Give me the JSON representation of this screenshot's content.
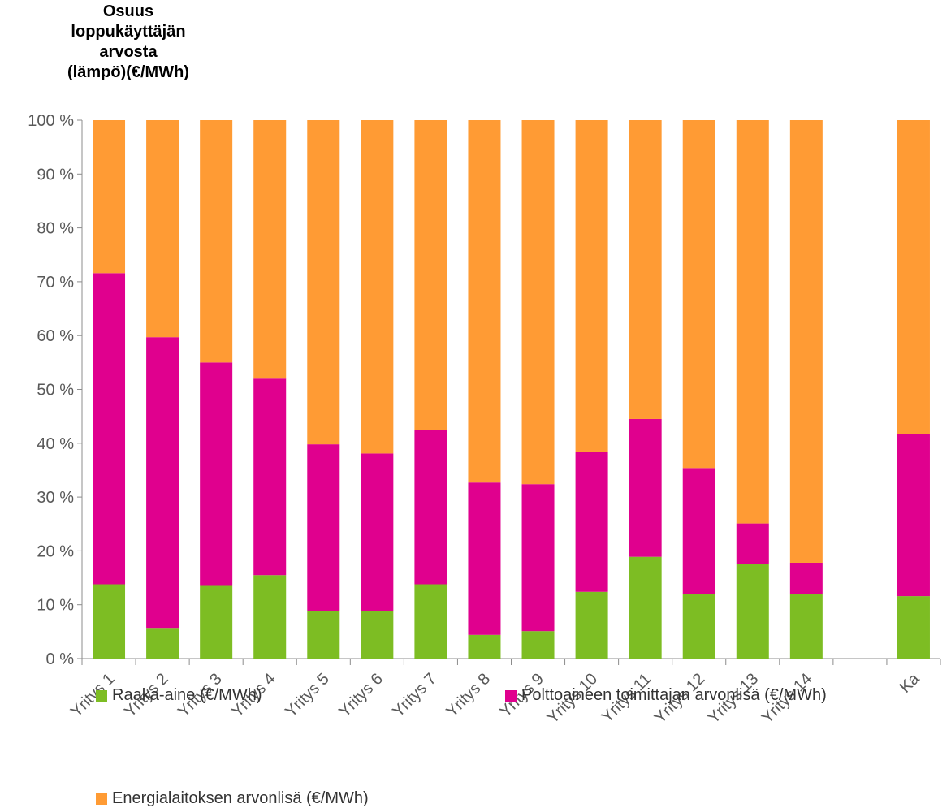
{
  "chart_data": {
    "type": "bar",
    "stacked": true,
    "percent": true,
    "title": "",
    "ylabel_lines": [
      "Osuus",
      "loppukäyttäjän",
      "arvosta",
      "(lämpö)(€/MWh)"
    ],
    "xlabel": "",
    "ylim": [
      0,
      100
    ],
    "yticks": [
      "0 %",
      "10 %",
      "20 %",
      "30 %",
      "40 %",
      "50 %",
      "60 %",
      "70 %",
      "80 %",
      "90 %",
      "100 %"
    ],
    "categories": [
      "Yritys 1",
      "Yritys 2",
      "Yritys 3",
      "Yritys 4",
      "Yritys 5",
      "Yritys 6",
      "Yritys 7",
      "Yritys 8",
      "Yritys 9",
      "Yritys 10",
      "Yritys 11",
      "Yritys 12",
      "Yritys 13",
      "Yritys 14",
      "",
      "Ka"
    ],
    "series": [
      {
        "name": "Raaka-aine (€/MWh)",
        "color": "#7dbd23",
        "values": [
          13.8,
          5.7,
          13.5,
          15.5,
          8.9,
          8.9,
          13.8,
          4.4,
          5.1,
          12.4,
          18.9,
          12.0,
          17.5,
          12.0,
          null,
          11.6
        ]
      },
      {
        "name": "Polttoaineen toimittajan arvonlisä (€/MWh)",
        "color": "#e0008e",
        "values": [
          57.8,
          54.0,
          41.5,
          36.5,
          30.9,
          29.2,
          28.6,
          28.3,
          27.3,
          26.0,
          25.6,
          23.4,
          7.6,
          5.8,
          null,
          30.1
        ]
      },
      {
        "name": "Energialaitoksen arvonlisä (€/MWh)",
        "color": "#ff9b34",
        "values": [
          28.4,
          40.3,
          45.0,
          48.0,
          60.2,
          61.9,
          57.6,
          67.3,
          67.6,
          61.6,
          55.5,
          64.6,
          74.9,
          82.2,
          null,
          58.3
        ]
      }
    ],
    "legend_position": "bottom",
    "grid": false
  }
}
